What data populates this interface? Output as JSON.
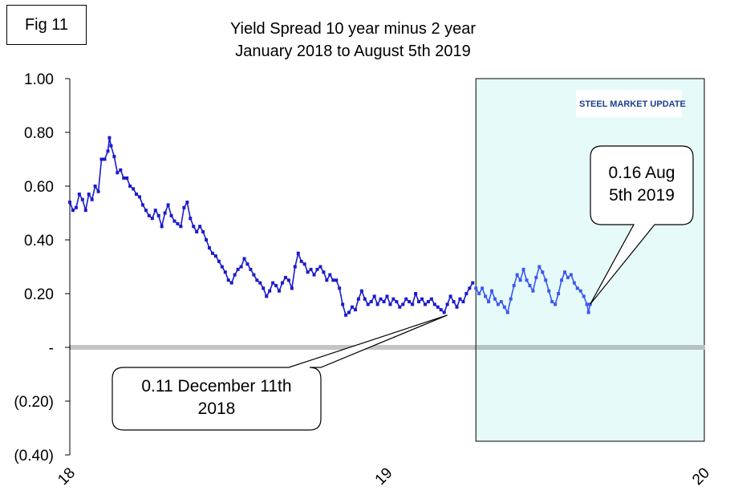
{
  "figure_label": "Fig 11",
  "watermark": "STEEL MARKET UPDATE",
  "colors": {
    "series_hist": "#1a1acd",
    "series_recent": "#3b58f2",
    "highlight_fill": "#e6fafa",
    "zero_line": "#8a8a8a"
  },
  "chart_data": {
    "type": "line",
    "title": "Yield Spread 10 year minus 2 year",
    "subtitle": "January 2018 to August 5th 2019",
    "xlabel": "",
    "ylabel": "",
    "ylim": [
      -0.4,
      1.0
    ],
    "xlim": [
      2018.0,
      2020.0
    ],
    "y_ticks": [
      {
        "value": 1.0,
        "label": "1.00"
      },
      {
        "value": 0.8,
        "label": "0.80"
      },
      {
        "value": 0.6,
        "label": "0.60"
      },
      {
        "value": 0.4,
        "label": "0.40"
      },
      {
        "value": 0.2,
        "label": "0.20"
      },
      {
        "value": 0.0,
        "label": "-"
      },
      {
        "value": -0.2,
        "label": "(0.20)"
      },
      {
        "value": -0.4,
        "label": "(0.40)"
      }
    ],
    "x_ticks": [
      {
        "value": 2018.0,
        "label": "18"
      },
      {
        "value": 2019.0,
        "label": "19"
      },
      {
        "value": 2020.0,
        "label": "20"
      }
    ],
    "highlight_range": [
      2019.28,
      2020.0
    ],
    "series": [
      {
        "name": "",
        "points": [
          [
            2018.0,
            0.54
          ],
          [
            2018.01,
            0.51
          ],
          [
            2018.02,
            0.52
          ],
          [
            2018.03,
            0.57
          ],
          [
            2018.04,
            0.55
          ],
          [
            2018.05,
            0.51
          ],
          [
            2018.06,
            0.57
          ],
          [
            2018.07,
            0.55
          ],
          [
            2018.08,
            0.6
          ],
          [
            2018.09,
            0.58
          ],
          [
            2018.1,
            0.7
          ],
          [
            2018.11,
            0.7
          ],
          [
            2018.12,
            0.73
          ],
          [
            2018.125,
            0.78
          ],
          [
            2018.13,
            0.75
          ],
          [
            2018.14,
            0.71
          ],
          [
            2018.15,
            0.65
          ],
          [
            2018.16,
            0.66
          ],
          [
            2018.17,
            0.63
          ],
          [
            2018.18,
            0.63
          ],
          [
            2018.19,
            0.6
          ],
          [
            2018.2,
            0.59
          ],
          [
            2018.21,
            0.57
          ],
          [
            2018.22,
            0.56
          ],
          [
            2018.23,
            0.53
          ],
          [
            2018.24,
            0.51
          ],
          [
            2018.25,
            0.49
          ],
          [
            2018.26,
            0.48
          ],
          [
            2018.27,
            0.51
          ],
          [
            2018.28,
            0.49
          ],
          [
            2018.29,
            0.45
          ],
          [
            2018.3,
            0.5
          ],
          [
            2018.31,
            0.53
          ],
          [
            2018.32,
            0.49
          ],
          [
            2018.33,
            0.47
          ],
          [
            2018.34,
            0.46
          ],
          [
            2018.35,
            0.45
          ],
          [
            2018.36,
            0.52
          ],
          [
            2018.37,
            0.54
          ],
          [
            2018.38,
            0.48
          ],
          [
            2018.39,
            0.45
          ],
          [
            2018.4,
            0.43
          ],
          [
            2018.41,
            0.45
          ],
          [
            2018.42,
            0.43
          ],
          [
            2018.43,
            0.4
          ],
          [
            2018.44,
            0.37
          ],
          [
            2018.45,
            0.35
          ],
          [
            2018.46,
            0.34
          ],
          [
            2018.47,
            0.32
          ],
          [
            2018.48,
            0.3
          ],
          [
            2018.49,
            0.28
          ],
          [
            2018.5,
            0.25
          ],
          [
            2018.51,
            0.24
          ],
          [
            2018.52,
            0.27
          ],
          [
            2018.53,
            0.29
          ],
          [
            2018.54,
            0.3
          ],
          [
            2018.55,
            0.33
          ],
          [
            2018.56,
            0.31
          ],
          [
            2018.57,
            0.29
          ],
          [
            2018.58,
            0.27
          ],
          [
            2018.59,
            0.25
          ],
          [
            2018.6,
            0.24
          ],
          [
            2018.61,
            0.22
          ],
          [
            2018.62,
            0.19
          ],
          [
            2018.63,
            0.21
          ],
          [
            2018.64,
            0.24
          ],
          [
            2018.65,
            0.23
          ],
          [
            2018.66,
            0.21
          ],
          [
            2018.67,
            0.24
          ],
          [
            2018.68,
            0.26
          ],
          [
            2018.69,
            0.25
          ],
          [
            2018.7,
            0.22
          ],
          [
            2018.71,
            0.3
          ],
          [
            2018.72,
            0.35
          ],
          [
            2018.73,
            0.32
          ],
          [
            2018.74,
            0.31
          ],
          [
            2018.75,
            0.28
          ],
          [
            2018.76,
            0.29
          ],
          [
            2018.77,
            0.27
          ],
          [
            2018.78,
            0.29
          ],
          [
            2018.79,
            0.3
          ],
          [
            2018.8,
            0.28
          ],
          [
            2018.81,
            0.25
          ],
          [
            2018.82,
            0.27
          ],
          [
            2018.83,
            0.25
          ],
          [
            2018.84,
            0.25
          ],
          [
            2018.85,
            0.22
          ],
          [
            2018.86,
            0.16
          ],
          [
            2018.87,
            0.12
          ],
          [
            2018.88,
            0.13
          ],
          [
            2018.89,
            0.15
          ],
          [
            2018.9,
            0.14
          ],
          [
            2018.91,
            0.18
          ],
          [
            2018.92,
            0.21
          ],
          [
            2018.93,
            0.18
          ],
          [
            2018.94,
            0.16
          ],
          [
            2018.95,
            0.17
          ],
          [
            2018.96,
            0.19
          ],
          [
            2018.97,
            0.16
          ],
          [
            2018.98,
            0.18
          ],
          [
            2018.99,
            0.17
          ],
          [
            2019.0,
            0.19
          ],
          [
            2019.01,
            0.16
          ],
          [
            2019.02,
            0.18
          ],
          [
            2019.03,
            0.17
          ],
          [
            2019.04,
            0.15
          ],
          [
            2019.05,
            0.16
          ],
          [
            2019.06,
            0.18
          ],
          [
            2019.07,
            0.17
          ],
          [
            2019.08,
            0.16
          ],
          [
            2019.09,
            0.2
          ],
          [
            2019.1,
            0.17
          ],
          [
            2019.11,
            0.18
          ],
          [
            2019.12,
            0.16
          ],
          [
            2019.13,
            0.17
          ],
          [
            2019.14,
            0.18
          ],
          [
            2019.15,
            0.16
          ],
          [
            2019.16,
            0.15
          ],
          [
            2019.17,
            0.14
          ],
          [
            2019.18,
            0.13
          ],
          [
            2019.19,
            0.16
          ],
          [
            2019.2,
            0.19
          ],
          [
            2019.21,
            0.17
          ],
          [
            2019.22,
            0.15
          ],
          [
            2019.23,
            0.18
          ],
          [
            2019.24,
            0.17
          ],
          [
            2019.25,
            0.2
          ],
          [
            2019.26,
            0.22
          ],
          [
            2019.27,
            0.24
          ]
        ]
      },
      {
        "name": "",
        "points": [
          [
            2019.28,
            0.22
          ],
          [
            2019.29,
            0.2
          ],
          [
            2019.3,
            0.22
          ],
          [
            2019.31,
            0.19
          ],
          [
            2019.32,
            0.17
          ],
          [
            2019.33,
            0.21
          ],
          [
            2019.34,
            0.18
          ],
          [
            2019.35,
            0.16
          ],
          [
            2019.36,
            0.17
          ],
          [
            2019.37,
            0.15
          ],
          [
            2019.38,
            0.13
          ],
          [
            2019.39,
            0.18
          ],
          [
            2019.4,
            0.23
          ],
          [
            2019.41,
            0.27
          ],
          [
            2019.42,
            0.25
          ],
          [
            2019.43,
            0.29
          ],
          [
            2019.44,
            0.25
          ],
          [
            2019.45,
            0.23
          ],
          [
            2019.46,
            0.21
          ],
          [
            2019.47,
            0.26
          ],
          [
            2019.48,
            0.3
          ],
          [
            2019.49,
            0.28
          ],
          [
            2019.5,
            0.25
          ],
          [
            2019.51,
            0.21
          ],
          [
            2019.52,
            0.17
          ],
          [
            2019.53,
            0.16
          ],
          [
            2019.54,
            0.2
          ],
          [
            2019.55,
            0.25
          ],
          [
            2019.56,
            0.28
          ],
          [
            2019.57,
            0.26
          ],
          [
            2019.58,
            0.27
          ],
          [
            2019.59,
            0.24
          ],
          [
            2019.6,
            0.22
          ],
          [
            2019.61,
            0.21
          ],
          [
            2019.62,
            0.19
          ],
          [
            2019.63,
            0.16
          ],
          [
            2019.635,
            0.13
          ],
          [
            2019.64,
            0.16
          ]
        ]
      }
    ],
    "annotations": [
      {
        "lines": [
          "0.16 Aug",
          "5th  2019"
        ],
        "x": 2019.64,
        "y": 0.16
      },
      {
        "lines": [
          "0.11 December 11th",
          "2018"
        ],
        "x": 2019.19,
        "y": 0.12
      }
    ]
  }
}
